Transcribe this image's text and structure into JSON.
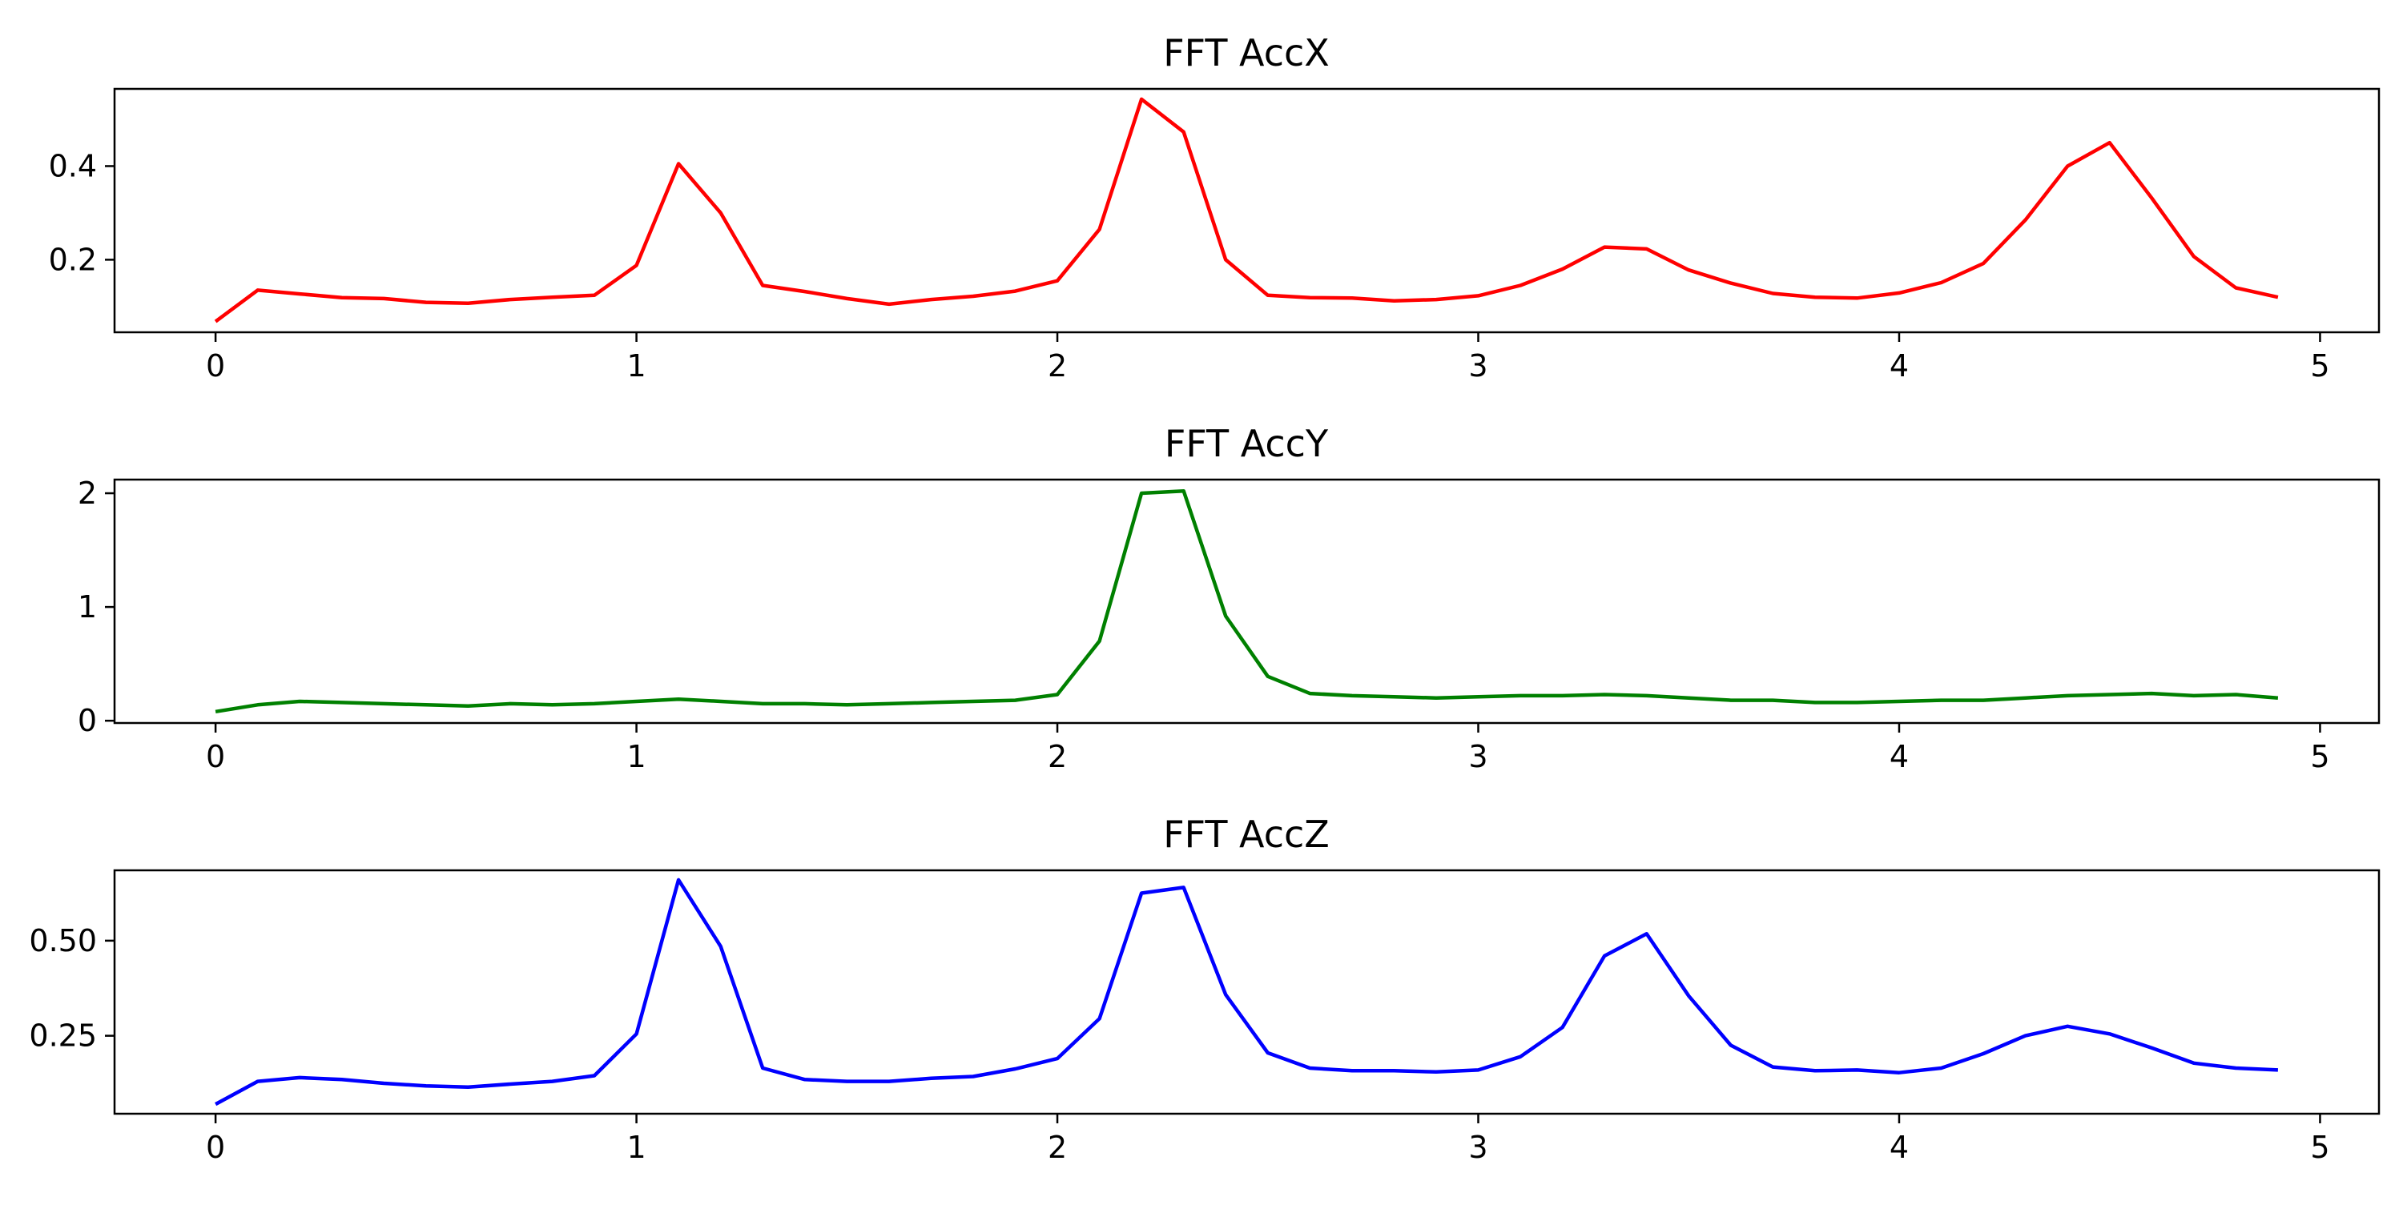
{
  "chart_data": [
    {
      "type": "line",
      "title": "FFT AccX",
      "color": "#ff0000",
      "x": [
        0,
        0.1,
        0.2,
        0.3,
        0.4,
        0.5,
        0.6,
        0.7,
        0.8,
        0.9,
        1.0,
        1.1,
        1.2,
        1.3,
        1.4,
        1.5,
        1.6,
        1.7,
        1.8,
        1.9,
        2.0,
        2.1,
        2.2,
        2.3,
        2.4,
        2.5,
        2.6,
        2.7,
        2.8,
        2.9,
        3.0,
        3.1,
        3.2,
        3.3,
        3.4,
        3.5,
        3.6,
        3.7,
        3.8,
        3.9,
        4.0,
        4.1,
        4.2,
        4.3,
        4.4,
        4.5,
        4.6,
        4.7,
        4.8,
        4.9
      ],
      "values": [
        0.068,
        0.135,
        0.127,
        0.119,
        0.117,
        0.109,
        0.107,
        0.115,
        0.12,
        0.124,
        0.188,
        0.405,
        0.3,
        0.145,
        0.132,
        0.117,
        0.105,
        0.115,
        0.122,
        0.133,
        0.155,
        0.265,
        0.543,
        0.473,
        0.2,
        0.124,
        0.119,
        0.118,
        0.112,
        0.115,
        0.123,
        0.145,
        0.18,
        0.227,
        0.223,
        0.178,
        0.15,
        0.128,
        0.12,
        0.118,
        0.129,
        0.151,
        0.192,
        0.285,
        0.4,
        0.45,
        0.332,
        0.207,
        0.14,
        0.12
      ],
      "xlim": [
        -0.24,
        5.14
      ],
      "ylim": [
        0.045,
        0.565
      ],
      "xticks": [
        "0",
        "1",
        "2",
        "3",
        "4",
        "5"
      ],
      "yticks": [
        "0.2",
        "0.4"
      ],
      "grid": false
    },
    {
      "type": "line",
      "title": "FFT AccY",
      "color": "#008000",
      "x": [
        0,
        0.1,
        0.2,
        0.3,
        0.4,
        0.5,
        0.6,
        0.7,
        0.8,
        0.9,
        1.0,
        1.1,
        1.2,
        1.3,
        1.4,
        1.5,
        1.6,
        1.7,
        1.8,
        1.9,
        2.0,
        2.1,
        2.2,
        2.3,
        2.4,
        2.5,
        2.6,
        2.7,
        2.8,
        2.9,
        3.0,
        3.1,
        3.2,
        3.3,
        3.4,
        3.5,
        3.6,
        3.7,
        3.8,
        3.9,
        4.0,
        4.1,
        4.2,
        4.3,
        4.4,
        4.5,
        4.6,
        4.7,
        4.8,
        4.9
      ],
      "values": [
        0.08,
        0.14,
        0.17,
        0.16,
        0.15,
        0.14,
        0.13,
        0.15,
        0.14,
        0.15,
        0.17,
        0.19,
        0.17,
        0.15,
        0.15,
        0.14,
        0.15,
        0.16,
        0.17,
        0.18,
        0.23,
        0.7,
        2.0,
        2.02,
        0.92,
        0.39,
        0.24,
        0.22,
        0.21,
        0.2,
        0.21,
        0.22,
        0.22,
        0.23,
        0.22,
        0.2,
        0.18,
        0.18,
        0.16,
        0.16,
        0.17,
        0.18,
        0.18,
        0.2,
        0.22,
        0.23,
        0.24,
        0.22,
        0.23,
        0.2
      ],
      "xlim": [
        -0.24,
        5.14
      ],
      "ylim": [
        -0.02,
        2.12
      ],
      "xticks": [
        "0",
        "1",
        "2",
        "3",
        "4",
        "5"
      ],
      "yticks": [
        "0",
        "1",
        "2"
      ],
      "grid": false
    },
    {
      "type": "line",
      "title": "FFT AccZ",
      "color": "#0000ff",
      "x": [
        0,
        0.1,
        0.2,
        0.3,
        0.4,
        0.5,
        0.6,
        0.7,
        0.8,
        0.9,
        1.0,
        1.1,
        1.2,
        1.3,
        1.4,
        1.5,
        1.6,
        1.7,
        1.8,
        1.9,
        2.0,
        2.1,
        2.2,
        2.3,
        2.4,
        2.5,
        2.6,
        2.7,
        2.8,
        2.9,
        3.0,
        3.1,
        3.2,
        3.3,
        3.4,
        3.5,
        3.6,
        3.7,
        3.8,
        3.9,
        4.0,
        4.1,
        4.2,
        4.3,
        4.4,
        4.5,
        4.6,
        4.7,
        4.8,
        4.9
      ],
      "values": [
        0.07,
        0.13,
        0.14,
        0.135,
        0.125,
        0.118,
        0.115,
        0.123,
        0.13,
        0.145,
        0.255,
        0.66,
        0.485,
        0.165,
        0.135,
        0.13,
        0.13,
        0.138,
        0.143,
        0.163,
        0.19,
        0.295,
        0.625,
        0.64,
        0.358,
        0.205,
        0.165,
        0.158,
        0.158,
        0.155,
        0.16,
        0.195,
        0.272,
        0.46,
        0.518,
        0.355,
        0.225,
        0.168,
        0.158,
        0.16,
        0.153,
        0.165,
        0.203,
        0.25,
        0.275,
        0.255,
        0.218,
        0.178,
        0.165,
        0.16
      ],
      "xlim": [
        -0.24,
        5.14
      ],
      "ylim": [
        0.045,
        0.685
      ],
      "xticks": [
        "0",
        "1",
        "2",
        "3",
        "4",
        "5"
      ],
      "yticks": [
        "0.25",
        "0.50"
      ],
      "grid": false
    }
  ]
}
